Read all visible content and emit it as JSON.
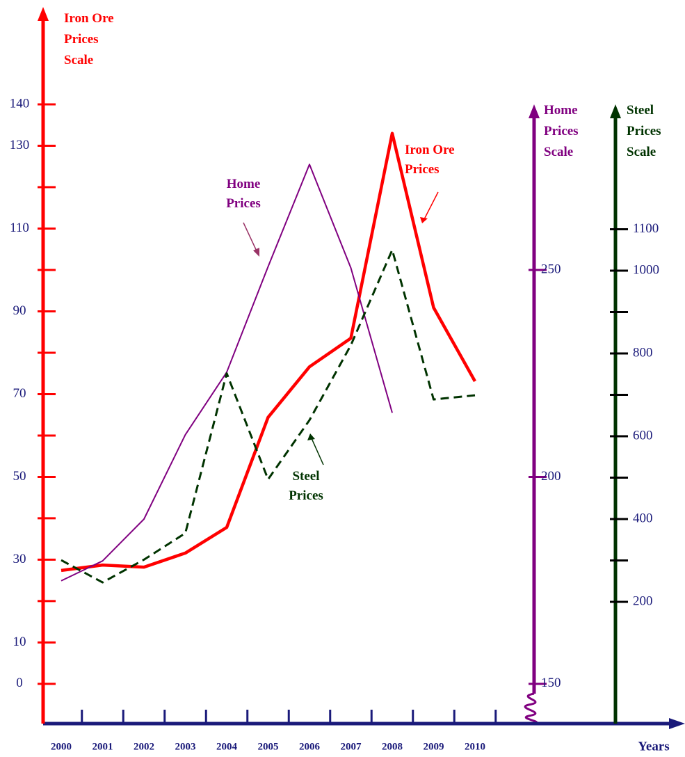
{
  "chart_data": {
    "type": "line",
    "x_label": "Years",
    "categories": [
      "2000",
      "2001",
      "2002",
      "2003",
      "2004",
      "2005",
      "2006",
      "2007",
      "2008",
      "2009",
      "2010"
    ],
    "axes": {
      "y": {
        "title": [
          "Iron Ore",
          "Prices",
          "Scale"
        ],
        "color": "#ff0000",
        "ylim": [
          -9.6,
          162.7
        ],
        "yticks": [
          0,
          10,
          30,
          50,
          70,
          90,
          110,
          130,
          140
        ],
        "minor_ticks": [
          20,
          40,
          60,
          80,
          100,
          120
        ]
      },
      "y2": {
        "title": [
          "Home",
          "Prices",
          "Scale"
        ],
        "color": "#800080",
        "ylim": [
          140.4,
          312.7
        ],
        "yticks": [
          150,
          200,
          250
        ],
        "minor_ticks": []
      },
      "y3": {
        "title": [
          "Steel",
          "Prices",
          "Scale"
        ],
        "color": "#003300",
        "ylim": [
          -94,
          1628.6
        ],
        "yticks": [
          200,
          400,
          600,
          800,
          1000,
          1100
        ],
        "minor_ticks": [
          300,
          500,
          700,
          900
        ]
      }
    },
    "series": [
      {
        "name": [
          "Iron Ore",
          "Prices"
        ],
        "axis": "y",
        "color": "#ff0000",
        "values": [
          27.4,
          28.7,
          28.2,
          31.6,
          37.8,
          64.4,
          76.6,
          83.5,
          133,
          90.9,
          73.1
        ]
      },
      {
        "name": [
          "Home",
          "Prices"
        ],
        "axis": "y2",
        "color": "#800080",
        "values": [
          174.9,
          179.7,
          189.8,
          210.2,
          225.3,
          250.8,
          275.5,
          250.5,
          215.5,
          null,
          null
        ]
      },
      {
        "name": [
          "Steel",
          "Prices"
        ],
        "axis": "y3",
        "color": "#003300",
        "values": [
          300.8,
          247,
          302,
          366,
          752,
          496,
          639,
          820,
          1050,
          689,
          699
        ]
      }
    ]
  }
}
